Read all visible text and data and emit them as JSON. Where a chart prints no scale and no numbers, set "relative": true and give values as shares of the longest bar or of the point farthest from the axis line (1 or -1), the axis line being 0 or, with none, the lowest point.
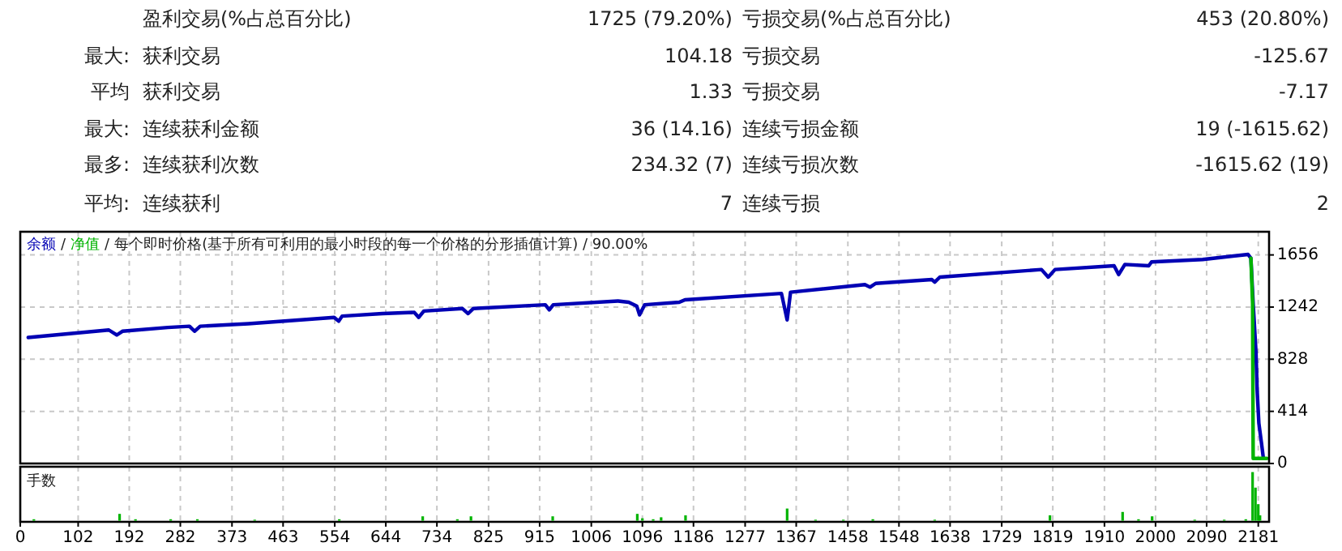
{
  "chart_data": [
    {
      "type": "other",
      "annotations": [
        "盈利交易(%占总百分比)",
        "1725 (79.20%)",
        "亏损交易(%占总百分比)",
        "453 (20.80%)",
        "最大:",
        "获利交易",
        "104.18",
        "亏损交易",
        "-125.67",
        "平均",
        "获利交易",
        "1.33",
        "亏损交易",
        "-7.17",
        "最大:",
        "连续获利金额",
        "36 (14.16)",
        "连续亏损金额",
        "19 (-1615.62)",
        "最多:",
        "连续获利次数",
        "234.32 (7)",
        "连续亏损次数",
        "-1615.62 (19)",
        "平均:",
        "连续获利",
        "7",
        "连续亏损",
        "2"
      ]
    },
    {
      "type": "line",
      "annotations": [
        "/",
        "/"
      ],
      "title": "每个即时价格(基于所有可利用的最小时段的每一个价格的分形插值计算) / 90.00%",
      "xlim": [
        0,
        2200
      ],
      "ylim": [
        0,
        1840
      ],
      "xticks": [
        0,
        102,
        192,
        282,
        373,
        463,
        554,
        644,
        734,
        825,
        915,
        1006,
        1096,
        1186,
        1277,
        1367,
        1458,
        1548,
        1638,
        1729,
        1819,
        1910,
        2000,
        2090,
        2181
      ],
      "yticks": [
        0,
        414,
        828,
        1242,
        1656
      ],
      "grid": true,
      "tick_labels": "y",
      "series": [
        {
          "name": "余额",
          "color": "#0000b4",
          "x": [
            14,
            156,
            170,
            180,
            260,
            298,
            307,
            317,
            402,
            553,
            561,
            567,
            638,
            694,
            702,
            711,
            779,
            789,
            798,
            925,
            932,
            939,
            1053,
            1072,
            1086,
            1091,
            1100,
            1161,
            1171,
            1341,
            1351,
            1357,
            1488,
            1497,
            1507,
            1606,
            1611,
            1620,
            1799,
            1811,
            1823,
            1927,
            1935,
            1946,
            1988,
            1993,
            2083,
            2163,
            2168,
            2172,
            2177,
            2179,
            2182,
            2187,
            2190
          ],
          "values": [
            1000,
            1060,
            1020,
            1050,
            1080,
            1090,
            1050,
            1090,
            1110,
            1160,
            1130,
            1170,
            1190,
            1200,
            1160,
            1210,
            1230,
            1190,
            1230,
            1260,
            1220,
            1260,
            1290,
            1280,
            1250,
            1180,
            1260,
            1280,
            1300,
            1350,
            1140,
            1360,
            1420,
            1400,
            1430,
            1460,
            1440,
            1480,
            1540,
            1480,
            1540,
            1570,
            1500,
            1580,
            1570,
            1600,
            1620,
            1660,
            1630,
            1270,
            880,
            580,
            320,
            150,
            40
          ]
        },
        {
          "name": "净值",
          "color": "#00b400",
          "x": [
            2168,
            2171,
            2172,
            2196
          ],
          "values": [
            1630,
            1270,
            40,
            40
          ]
        }
      ]
    },
    {
      "type": "bar",
      "title": "手数",
      "relative": true,
      "color": "#00b400",
      "xlim": [
        0,
        2200
      ],
      "xticks": [
        0,
        102,
        192,
        282,
        373,
        463,
        554,
        644,
        734,
        825,
        915,
        1006,
        1096,
        1186,
        1277,
        1367,
        1458,
        1548,
        1638,
        1729,
        1819,
        1910,
        2000,
        2090,
        2181
      ],
      "grid": "x",
      "tick_labels": "x",
      "x": [
        24,
        175,
        203,
        265,
        312,
        413,
        562,
        709,
        770,
        794,
        938,
        1087,
        1096,
        1115,
        1129,
        1172,
        1351,
        1401,
        1450,
        1502,
        1611,
        1814,
        1942,
        1970,
        1994,
        2069,
        2121,
        2159,
        2171,
        2176,
        2181,
        2184
      ],
      "values": [
        0.03,
        0.14,
        0.03,
        0.03,
        0.03,
        0.02,
        0.03,
        0.09,
        0.03,
        0.09,
        0.09,
        0.14,
        0.05,
        0.03,
        0.07,
        0.11,
        0.25,
        0.02,
        0.02,
        0.03,
        0.02,
        0.11,
        0.18,
        0.03,
        0.09,
        0.02,
        0.02,
        0.03,
        1,
        0.68,
        0.34,
        0.11
      ]
    }
  ]
}
